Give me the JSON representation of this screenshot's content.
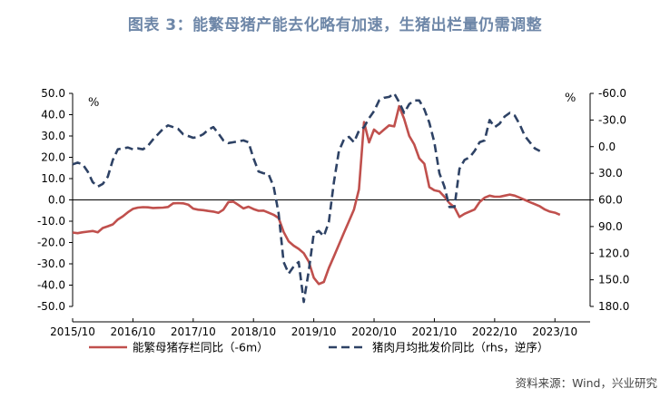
{
  "title": "图表 3：能繁母猪产能去化略有加速，生猪出栏量仍需调整",
  "source": "资料来源：Wind，兴业研究",
  "chart_data": {
    "type": "line",
    "title": "图表 3：能繁母猪产能去化略有加速，生猪出栏量仍需调整",
    "x_ticks": [
      "2015/10",
      "2016/10",
      "2017/10",
      "2018/10",
      "2019/10",
      "2020/10",
      "2021/10",
      "2022/10",
      "2023/10"
    ],
    "x_range": [
      "2015/10",
      "2024/05"
    ],
    "y_left": {
      "unit": "%",
      "range": [
        -50,
        50
      ],
      "ticks": [
        "50.0",
        "40.0",
        "30.0",
        "20.0",
        "10.0",
        "0.0",
        "-10.0",
        "-20.0",
        "-30.0",
        "-40.0",
        "-50.0"
      ]
    },
    "y_right": {
      "unit": "%",
      "range": [
        -60,
        180
      ],
      "reversed": true,
      "ticks": [
        "-60.0",
        "-30.0",
        "0.0",
        "30.0",
        "60.0",
        "90.0",
        "120.0",
        "150.0",
        "180.0"
      ]
    },
    "grid": false,
    "legend_position": "bottom",
    "series": [
      {
        "name": "能繁母猪存栏同比（-6m）",
        "axis": "left",
        "color": "#c0504d",
        "style": "solid",
        "points": [
          [
            "2015/10",
            -15.3
          ],
          [
            "2015/11",
            -15.6
          ],
          [
            "2015/12",
            -15.2
          ],
          [
            "2016/01",
            -14.9
          ],
          [
            "2016/02",
            -14.6
          ],
          [
            "2016/03",
            -15.2
          ],
          [
            "2016/04",
            -13.2
          ],
          [
            "2016/05",
            -12.4
          ],
          [
            "2016/06",
            -11.5
          ],
          [
            "2016/07",
            -9.2
          ],
          [
            "2016/08",
            -7.7
          ],
          [
            "2016/09",
            -5.8
          ],
          [
            "2016/10",
            -4.2
          ],
          [
            "2016/11",
            -3.6
          ],
          [
            "2016/12",
            -3.4
          ],
          [
            "2017/01",
            -3.5
          ],
          [
            "2017/02",
            -3.8
          ],
          [
            "2017/03",
            -3.7
          ],
          [
            "2017/04",
            -3.6
          ],
          [
            "2017/05",
            -3.3
          ],
          [
            "2017/06",
            -1.6
          ],
          [
            "2017/07",
            -1.5
          ],
          [
            "2017/08",
            -1.6
          ],
          [
            "2017/09",
            -2.2
          ],
          [
            "2017/10",
            -4.1
          ],
          [
            "2017/11",
            -4.6
          ],
          [
            "2017/12",
            -4.8
          ],
          [
            "2018/01",
            -5.2
          ],
          [
            "2018/02",
            -5.5
          ],
          [
            "2018/03",
            -6.1
          ],
          [
            "2018/04",
            -4.6
          ],
          [
            "2018/05",
            -1.0
          ],
          [
            "2018/06",
            -0.8
          ],
          [
            "2018/07",
            -2.4
          ],
          [
            "2018/08",
            -4.0
          ],
          [
            "2018/09",
            -3.2
          ],
          [
            "2018/10",
            -4.3
          ],
          [
            "2018/11",
            -5.1
          ],
          [
            "2018/12",
            -5.0
          ],
          [
            "2019/01",
            -6.0
          ],
          [
            "2019/02",
            -7.0
          ],
          [
            "2019/03",
            -8.5
          ],
          [
            "2019/04",
            -15.0
          ],
          [
            "2019/05",
            -19.5
          ],
          [
            "2019/06",
            -21.5
          ],
          [
            "2019/07",
            -23.0
          ],
          [
            "2019/08",
            -25.0
          ],
          [
            "2019/09",
            -29.0
          ],
          [
            "2019/10",
            -36.5
          ],
          [
            "2019/11",
            -39.5
          ],
          [
            "2019/12",
            -38.5
          ],
          [
            "2020/01",
            -32.0
          ],
          [
            "2020/02",
            -26.5
          ],
          [
            "2020/03",
            -21.0
          ],
          [
            "2020/04",
            -15.5
          ],
          [
            "2020/05",
            -10.0
          ],
          [
            "2020/06",
            -4.5
          ],
          [
            "2020/07",
            5.0
          ],
          [
            "2020/08",
            36.5
          ],
          [
            "2020/09",
            27.0
          ],
          [
            "2020/10",
            33.0
          ],
          [
            "2020/11",
            31.0
          ],
          [
            "2020/12",
            33.0
          ],
          [
            "2021/01",
            35.0
          ],
          [
            "2021/02",
            34.5
          ],
          [
            "2021/03",
            44.0
          ],
          [
            "2021/04",
            38.0
          ],
          [
            "2021/05",
            30.0
          ],
          [
            "2021/06",
            26.0
          ],
          [
            "2021/07",
            19.5
          ],
          [
            "2021/08",
            17.0
          ],
          [
            "2021/09",
            6.0
          ],
          [
            "2021/10",
            4.5
          ],
          [
            "2021/11",
            4.0
          ],
          [
            "2021/12",
            1.5
          ],
          [
            "2022/01",
            -1.5
          ],
          [
            "2022/02",
            -3.5
          ],
          [
            "2022/03",
            -8.0
          ],
          [
            "2022/04",
            -6.5
          ],
          [
            "2022/05",
            -5.5
          ],
          [
            "2022/06",
            -4.5
          ],
          [
            "2022/07",
            -1.0
          ],
          [
            "2022/08",
            1.0
          ],
          [
            "2022/09",
            2.0
          ],
          [
            "2022/10",
            1.5
          ],
          [
            "2022/11",
            1.5
          ],
          [
            "2022/12",
            2.0
          ],
          [
            "2023/01",
            2.5
          ],
          [
            "2023/02",
            2.0
          ],
          [
            "2023/03",
            1.0
          ],
          [
            "2023/04",
            0.0
          ],
          [
            "2023/05",
            -1.0
          ],
          [
            "2023/06",
            -2.0
          ],
          [
            "2023/07",
            -3.0
          ],
          [
            "2023/08",
            -4.5
          ],
          [
            "2023/09",
            -5.5
          ],
          [
            "2023/10",
            -6.0
          ],
          [
            "2023/11",
            -7.0
          ]
        ]
      },
      {
        "name": "猪肉月均批发价同比（rhs，逆序）",
        "axis": "right",
        "color": "#2e4265",
        "style": "dashed",
        "points": [
          [
            "2015/10",
            20
          ],
          [
            "2015/11",
            18
          ],
          [
            "2015/12",
            20
          ],
          [
            "2016/01",
            28
          ],
          [
            "2016/02",
            40
          ],
          [
            "2016/03",
            45
          ],
          [
            "2016/04",
            42
          ],
          [
            "2016/05",
            34
          ],
          [
            "2016/06",
            15
          ],
          [
            "2016/07",
            3
          ],
          [
            "2016/08",
            2
          ],
          [
            "2016/09",
            1
          ],
          [
            "2016/10",
            3
          ],
          [
            "2016/11",
            2
          ],
          [
            "2016/12",
            3
          ],
          [
            "2017/01",
            -1
          ],
          [
            "2017/02",
            -8
          ],
          [
            "2017/03",
            -14
          ],
          [
            "2017/04",
            -20
          ],
          [
            "2017/05",
            -24
          ],
          [
            "2017/06",
            -22
          ],
          [
            "2017/07",
            -20
          ],
          [
            "2017/08",
            -14
          ],
          [
            "2017/09",
            -12
          ],
          [
            "2017/10",
            -10
          ],
          [
            "2017/11",
            -11
          ],
          [
            "2017/12",
            -14
          ],
          [
            "2018/01",
            -19
          ],
          [
            "2018/02",
            -22
          ],
          [
            "2018/03",
            -15
          ],
          [
            "2018/04",
            -7
          ],
          [
            "2018/05",
            -4
          ],
          [
            "2018/06",
            -5
          ],
          [
            "2018/07",
            -6
          ],
          [
            "2018/08",
            -7
          ],
          [
            "2018/09",
            -5
          ],
          [
            "2018/10",
            13
          ],
          [
            "2018/11",
            28
          ],
          [
            "2018/12",
            30
          ],
          [
            "2019/01",
            31
          ],
          [
            "2019/02",
            45
          ],
          [
            "2019/03",
            75
          ],
          [
            "2019/04",
            130
          ],
          [
            "2019/05",
            143
          ],
          [
            "2019/06",
            135
          ],
          [
            "2019/07",
            130
          ],
          [
            "2019/08",
            175
          ],
          [
            "2019/09",
            140
          ],
          [
            "2019/10",
            98
          ],
          [
            "2019/11",
            95
          ],
          [
            "2019/12",
            101
          ],
          [
            "2020/01",
            85
          ],
          [
            "2020/02",
            40
          ],
          [
            "2020/03",
            5
          ],
          [
            "2020/04",
            -8
          ],
          [
            "2020/05",
            -11
          ],
          [
            "2020/06",
            -5
          ],
          [
            "2020/07",
            -18
          ],
          [
            "2020/08",
            -22
          ],
          [
            "2020/09",
            -32
          ],
          [
            "2020/10",
            -40
          ],
          [
            "2020/11",
            -52
          ],
          [
            "2020/12",
            -55
          ],
          [
            "2021/01",
            -56
          ],
          [
            "2021/02",
            -60
          ],
          [
            "2021/03",
            -50
          ],
          [
            "2021/04",
            -38
          ],
          [
            "2021/05",
            -48
          ],
          [
            "2021/06",
            -52
          ],
          [
            "2021/07",
            -52
          ],
          [
            "2021/08",
            -42
          ],
          [
            "2021/09",
            -27
          ],
          [
            "2021/10",
            -5
          ],
          [
            "2021/11",
            30
          ],
          [
            "2021/12",
            45
          ],
          [
            "2022/01",
            68
          ],
          [
            "2022/02",
            68
          ],
          [
            "2022/03",
            25
          ],
          [
            "2022/04",
            15
          ],
          [
            "2022/05",
            12
          ],
          [
            "2022/06",
            5
          ],
          [
            "2022/07",
            -5
          ],
          [
            "2022/08",
            -7
          ],
          [
            "2022/09",
            -30
          ],
          [
            "2022/10",
            -22
          ],
          [
            "2022/11",
            -26
          ],
          [
            "2022/12",
            -34
          ],
          [
            "2023/01",
            -38
          ],
          [
            "2023/02",
            -35
          ],
          [
            "2023/03",
            -25
          ],
          [
            "2023/04",
            -12
          ],
          [
            "2023/05",
            -5
          ],
          [
            "2023/06",
            2
          ],
          [
            "2023/07",
            5
          ]
        ]
      }
    ]
  }
}
